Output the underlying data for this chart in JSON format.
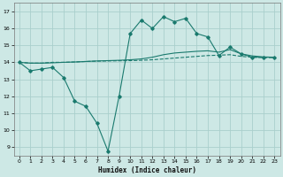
{
  "title": "",
  "xlabel": "Humidex (Indice chaleur)",
  "ylabel": "",
  "xlim": [
    -0.5,
    23.5
  ],
  "ylim": [
    8.5,
    17.5
  ],
  "xticks": [
    0,
    1,
    2,
    3,
    4,
    5,
    6,
    7,
    8,
    9,
    10,
    11,
    12,
    13,
    14,
    15,
    16,
    17,
    18,
    19,
    20,
    21,
    22,
    23
  ],
  "yticks": [
    9,
    10,
    11,
    12,
    13,
    14,
    15,
    16,
    17
  ],
  "bg_color": "#cde8e5",
  "grid_color": "#aacfcc",
  "line_color": "#1a7a6e",
  "line1_x": [
    0,
    1,
    2,
    3,
    4,
    5,
    6,
    7,
    8,
    9,
    10,
    11,
    12,
    13,
    14,
    15,
    16,
    17,
    18,
    19,
    20,
    21,
    22,
    23
  ],
  "line1_y": [
    14.0,
    13.5,
    13.6,
    13.7,
    13.1,
    11.7,
    11.4,
    10.4,
    8.75,
    12.0,
    15.7,
    16.5,
    16.0,
    16.7,
    16.4,
    16.6,
    15.7,
    15.5,
    14.4,
    14.9,
    14.5,
    14.3,
    14.3,
    14.3
  ],
  "line2_x": [
    0,
    1,
    2,
    3,
    4,
    5,
    6,
    7,
    8,
    9,
    10,
    11,
    12,
    13,
    14,
    15,
    16,
    17,
    18,
    19,
    20,
    21,
    22,
    23
  ],
  "line2_y": [
    14.0,
    13.95,
    13.95,
    14.0,
    14.0,
    14.02,
    14.05,
    14.07,
    14.08,
    14.09,
    14.1,
    14.12,
    14.15,
    14.2,
    14.25,
    14.3,
    14.35,
    14.4,
    14.42,
    14.45,
    14.35,
    14.3,
    14.28,
    14.28
  ],
  "line3_x": [
    0,
    1,
    2,
    3,
    4,
    5,
    6,
    7,
    8,
    9,
    10,
    11,
    12,
    13,
    14,
    15,
    16,
    17,
    18,
    19,
    20,
    21,
    22,
    23
  ],
  "line3_y": [
    14.0,
    13.95,
    13.95,
    13.97,
    14.0,
    14.02,
    14.05,
    14.08,
    14.1,
    14.12,
    14.15,
    14.2,
    14.3,
    14.45,
    14.55,
    14.6,
    14.65,
    14.68,
    14.6,
    14.75,
    14.5,
    14.38,
    14.32,
    14.3
  ]
}
